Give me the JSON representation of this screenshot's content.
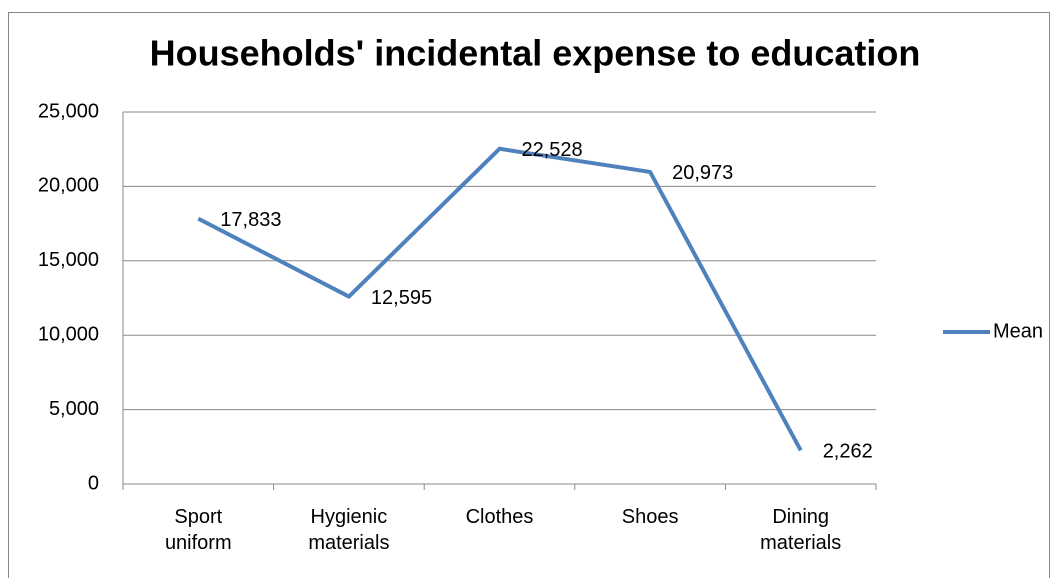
{
  "chart_data": {
    "type": "line",
    "title": "Households' incidental expense to education",
    "categories": [
      "Sport uniform",
      "Hygienic materials",
      "Clothes",
      "Shoes",
      "Dining materials"
    ],
    "series": [
      {
        "name": "Mean",
        "color": "#4f81bd",
        "values": [
          17833,
          12595,
          22528,
          20973,
          2262
        ],
        "value_labels": [
          "17,833",
          "12,595",
          "22,528",
          "20,973",
          "2,262"
        ]
      }
    ],
    "ylim": [
      0,
      25000
    ],
    "yticks": [
      0,
      {
        "value": 5000,
        "label": "5,000"
      },
      {
        "value": 10000,
        "label": "10,000"
      },
      {
        "value": 15000,
        "label": "15,000"
      },
      {
        "value": 20000,
        "label": "20,000"
      },
      {
        "value": 25000,
        "label": "25,000"
      }
    ],
    "grid": true,
    "legend": "right"
  }
}
